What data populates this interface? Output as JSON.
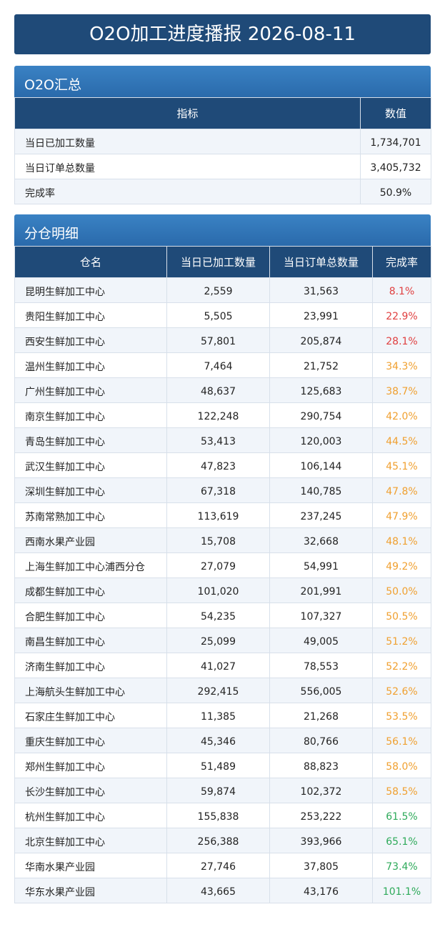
{
  "header": {
    "title": "O2O加工进度播报 2026-08-11"
  },
  "summary": {
    "title": "O2O汇总",
    "columns": [
      "指标",
      "数值"
    ],
    "rows": [
      [
        "当日已加工数量",
        "1,734,701"
      ],
      [
        "当日订单总数量",
        "3,405,732"
      ],
      [
        "完成率",
        "50.9%"
      ]
    ]
  },
  "detail": {
    "title": "分仓明细",
    "columns": [
      "仓名",
      "当日已加工数量",
      "当日订单总数量",
      "完成率"
    ],
    "rows": [
      [
        "昆明生鲜加工中心",
        "2,559",
        "31,563",
        "8.1%"
      ],
      [
        "贵阳生鲜加工中心",
        "5,505",
        "23,991",
        "22.9%"
      ],
      [
        "西安生鲜加工中心",
        "57,801",
        "205,874",
        "28.1%"
      ],
      [
        "温州生鲜加工中心",
        "7,464",
        "21,752",
        "34.3%"
      ],
      [
        "广州生鲜加工中心",
        "48,637",
        "125,683",
        "38.7%"
      ],
      [
        "南京生鲜加工中心",
        "122,248",
        "290,754",
        "42.0%"
      ],
      [
        "青岛生鲜加工中心",
        "53,413",
        "120,003",
        "44.5%"
      ],
      [
        "武汉生鲜加工中心",
        "47,823",
        "106,144",
        "45.1%"
      ],
      [
        "深圳生鲜加工中心",
        "67,318",
        "140,785",
        "47.8%"
      ],
      [
        "苏南常熟加工中心",
        "113,619",
        "237,245",
        "47.9%"
      ],
      [
        "西南水果产业园",
        "15,708",
        "32,668",
        "48.1%"
      ],
      [
        "上海生鲜加工中心浦西分仓",
        "27,079",
        "54,991",
        "49.2%"
      ],
      [
        "成都生鲜加工中心",
        "101,020",
        "201,991",
        "50.0%"
      ],
      [
        "合肥生鲜加工中心",
        "54,235",
        "107,327",
        "50.5%"
      ],
      [
        "南昌生鲜加工中心",
        "25,099",
        "49,005",
        "51.2%"
      ],
      [
        "济南生鲜加工中心",
        "41,027",
        "78,553",
        "52.2%"
      ],
      [
        "上海航头生鲜加工中心",
        "292,415",
        "556,005",
        "52.6%"
      ],
      [
        "石家庄生鲜加工中心",
        "11,385",
        "21,268",
        "53.5%"
      ],
      [
        "重庆生鲜加工中心",
        "45,346",
        "80,766",
        "56.1%"
      ],
      [
        "郑州生鲜加工中心",
        "51,489",
        "88,823",
        "58.0%"
      ],
      [
        "长沙生鲜加工中心",
        "59,874",
        "102,372",
        "58.5%"
      ],
      [
        "杭州生鲜加工中心",
        "155,838",
        "253,222",
        "61.5%"
      ],
      [
        "北京生鲜加工中心",
        "256,388",
        "393,966",
        "65.1%"
      ],
      [
        "华南水果产业园",
        "27,746",
        "37,805",
        "73.4%"
      ],
      [
        "华东水果产业园",
        "43,665",
        "43,176",
        "101.1%"
      ]
    ],
    "rate_colors": [
      "#e04040",
      "#e04040",
      "#e04040",
      "#f0a030",
      "#f0a030",
      "#f0a030",
      "#f0a030",
      "#f0a030",
      "#f0a030",
      "#f0a030",
      "#f0a030",
      "#f0a030",
      "#f0a030",
      "#f0a030",
      "#f0a030",
      "#f0a030",
      "#f0a030",
      "#f0a030",
      "#f0a030",
      "#f0a030",
      "#f0a030",
      "#2eaa5a",
      "#2eaa5a",
      "#2eaa5a",
      "#2eaa5a"
    ]
  }
}
